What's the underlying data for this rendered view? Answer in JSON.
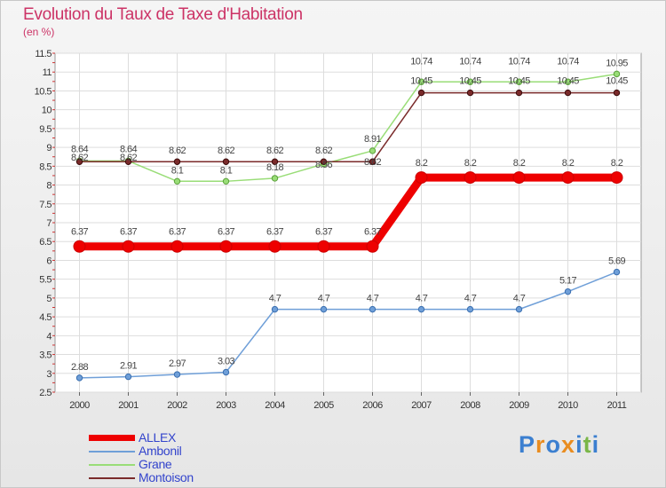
{
  "chart_data": {
    "type": "line",
    "title": "Evolution du Taux de Taxe d'Habitation",
    "subtitle": "(en %)",
    "xlabel": "",
    "ylabel": "",
    "categories": [
      "2000",
      "2001",
      "2002",
      "2003",
      "2004",
      "2005",
      "2006",
      "2007",
      "2008",
      "2009",
      "2010",
      "2011"
    ],
    "ylim": [
      2.5,
      11.5
    ],
    "yticks": [
      "2.5",
      "3",
      "3.5",
      "4",
      "4.5",
      "5",
      "5.5",
      "6",
      "6.5",
      "7",
      "7.5",
      "8",
      "8.5",
      "9",
      "9.5",
      "10",
      "10.5",
      "11",
      "11.5"
    ],
    "grid": true,
    "legend_position": "bottom-left",
    "series": [
      {
        "name": "ALLEX",
        "color": "#ee0000",
        "values": [
          6.37,
          6.37,
          6.37,
          6.37,
          6.37,
          6.37,
          6.37,
          8.2,
          8.2,
          8.2,
          8.2,
          8.2
        ],
        "labels": [
          "6.37",
          "6.37",
          "6.37",
          "6.37",
          "6.37",
          "6.37",
          "6.37",
          "8.2",
          "8.2",
          "8.2",
          "8.2",
          "8.2"
        ]
      },
      {
        "name": "Ambonil",
        "color": "#6f9fd8",
        "values": [
          2.88,
          2.91,
          2.97,
          3.03,
          4.7,
          4.7,
          4.7,
          4.7,
          4.7,
          4.7,
          5.17,
          5.69
        ],
        "labels": [
          "2.88",
          "2.91",
          "2.97",
          "3.03",
          "4.7",
          "4.7",
          "4.7",
          "4.7",
          "4.7",
          "4.7",
          "5.17",
          "5.69"
        ]
      },
      {
        "name": "Grane",
        "color": "#99dd77",
        "values": [
          8.64,
          8.64,
          8.1,
          8.1,
          8.18,
          8.56,
          8.91,
          10.74,
          10.74,
          10.74,
          10.74,
          10.95
        ],
        "labels": [
          "8.64",
          "8.64",
          "8.1",
          "8.1",
          "8.18",
          "8.56",
          "8.91",
          "10.74",
          "10.74",
          "10.74",
          "10.74",
          "10.95"
        ]
      },
      {
        "name": "Montoison",
        "color": "#7a2a2a",
        "values": [
          8.62,
          8.62,
          8.62,
          8.62,
          8.62,
          8.62,
          8.62,
          10.45,
          10.45,
          10.45,
          10.45,
          10.45
        ],
        "labels": [
          "8.62",
          "8.62",
          "8.62",
          "8.62",
          "8.62",
          "8.62",
          "8.62",
          "10.45",
          "10.45",
          "10.45",
          "10.45",
          "10.45"
        ]
      }
    ]
  },
  "legend": {
    "allex": "ALLEX",
    "ambonil": "Ambonil",
    "grane": "Grane",
    "montoison": "Montoison"
  },
  "logo": {
    "letters": [
      "P",
      "r",
      "o",
      "x",
      "i",
      "t",
      "i"
    ],
    "colors": [
      "#3b7fd0",
      "#e98c1f",
      "#3b7fd0",
      "#e98c1f",
      "#3b7fd0",
      "#7ab648",
      "#3b7fd0"
    ]
  }
}
